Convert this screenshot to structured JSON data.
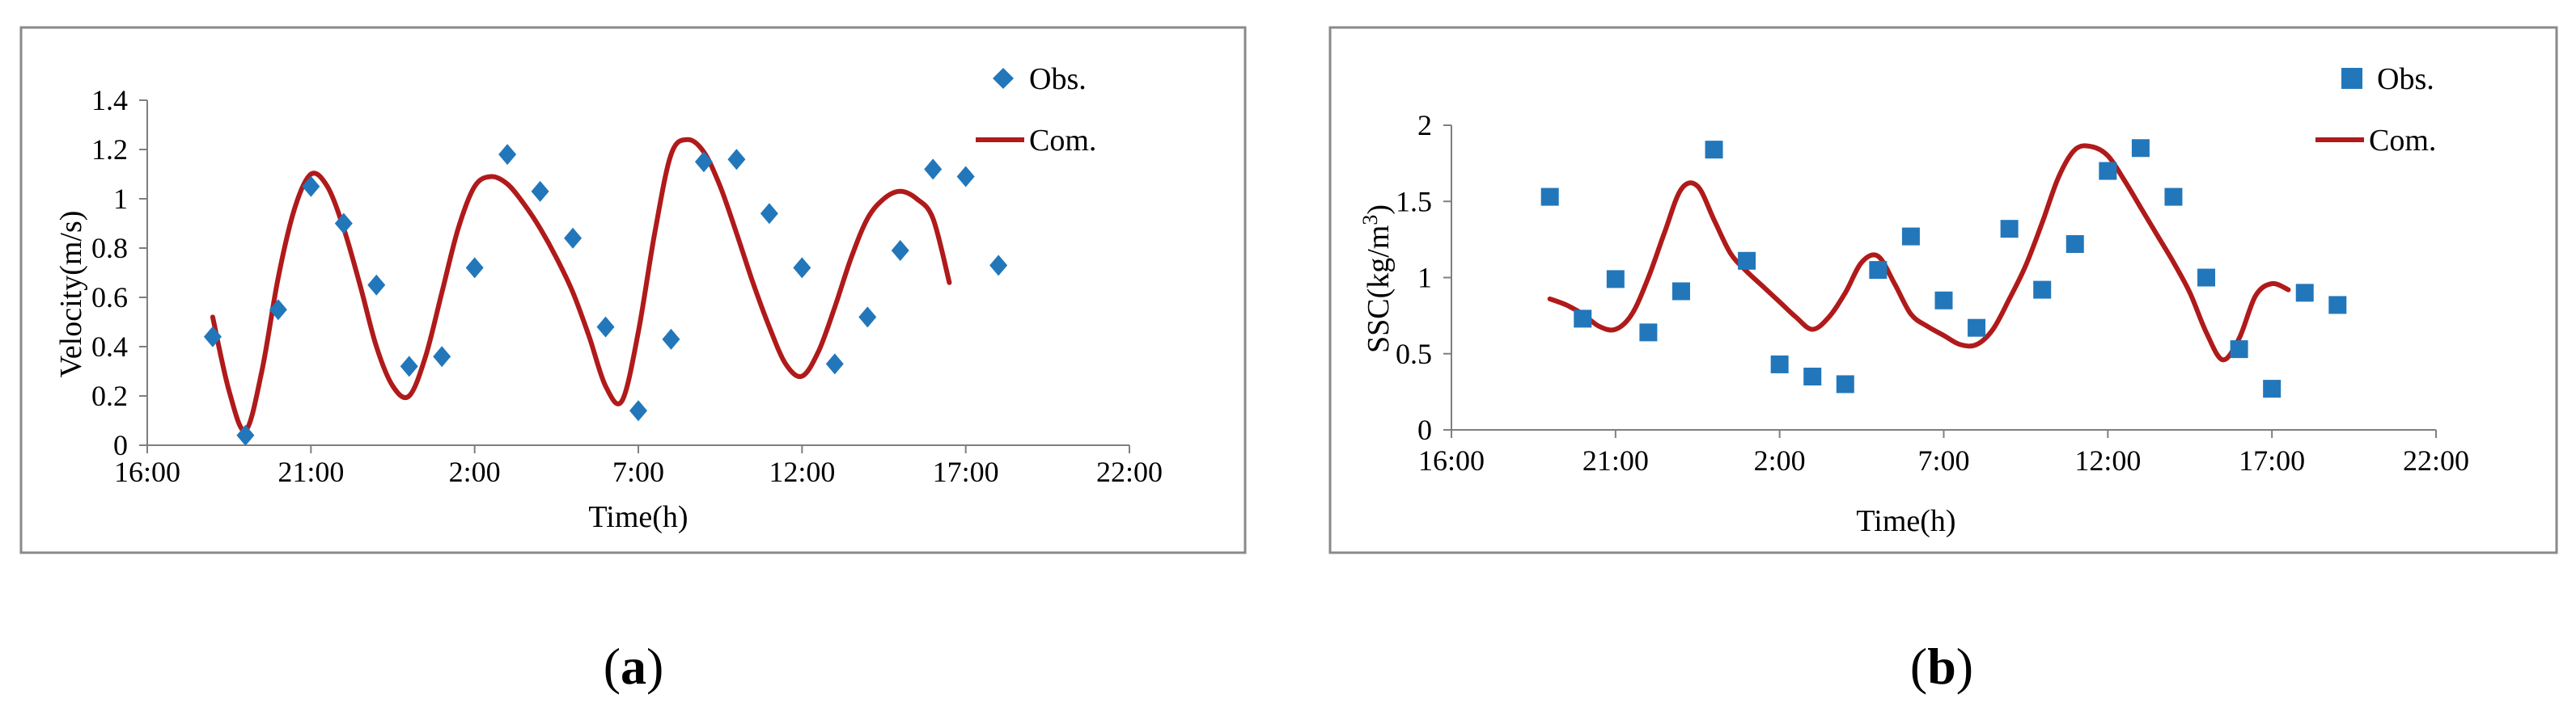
{
  "colors": {
    "obs": "#2277bb",
    "com": "#b01a1a",
    "frame": "#8a8a8a",
    "axis": "#7f7f7f"
  },
  "panels": [
    {
      "caption_open": "(",
      "caption_letter": "a",
      "caption_close": ")"
    },
    {
      "caption_open": "(",
      "caption_letter": "b",
      "caption_close": ")"
    }
  ],
  "chart_data": [
    {
      "type": "scatter+line",
      "title": "",
      "xlabel": "Time(h)",
      "ylabel": "Velocity(m/s)",
      "xlim": [
        0,
        30
      ],
      "ylim": [
        0,
        1.4
      ],
      "x_tick_values": [
        0,
        5,
        10,
        15,
        20,
        25,
        30
      ],
      "x_tick_labels": [
        "16:00",
        "21:00",
        "2:00",
        "7:00",
        "12:00",
        "17:00",
        "22:00"
      ],
      "y_ticks": [
        0,
        0.2,
        0.4,
        0.6,
        0.8,
        1,
        1.2,
        1.4
      ],
      "y_tick_labels": [
        "0",
        "0.2",
        "0.4",
        "0.6",
        "0.8",
        "1",
        "1.2",
        "1.4"
      ],
      "legend": {
        "obs_label": "Obs.",
        "com_label": "Com.",
        "obs_marker": "diamond"
      },
      "series": [
        {
          "name": "Obs.",
          "kind": "markers",
          "x": [
            2,
            3,
            4,
            5,
            6,
            7,
            8,
            9,
            10,
            11,
            12,
            13,
            14,
            15,
            16,
            17,
            18,
            19,
            20,
            21,
            22,
            23,
            24,
            25,
            26,
            27
          ],
          "y": [
            0.44,
            0.04,
            0.55,
            1.05,
            0.9,
            0.65,
            0.32,
            0.36,
            0.72,
            1.18,
            1.03,
            0.84,
            0.48,
            0.14,
            0.43,
            1.15,
            1.16,
            0.94,
            0.72,
            0.33,
            0.52,
            0.79,
            1.12,
            1.09,
            0.73,
            null
          ]
        },
        {
          "name": "Com.",
          "kind": "line",
          "x": [
            2.0,
            2.5,
            3.0,
            3.5,
            4.0,
            4.5,
            5.0,
            5.5,
            6.0,
            6.5,
            7.0,
            7.5,
            8.0,
            8.5,
            9.0,
            9.5,
            10.0,
            10.5,
            11.0,
            11.5,
            12.0,
            12.5,
            13.0,
            13.5,
            14.0,
            14.5,
            15.0,
            15.5,
            16.0,
            16.5,
            17.0,
            17.5,
            18.0,
            18.5,
            19.0,
            19.5,
            20.0,
            20.5,
            21.0,
            21.5,
            22.0,
            22.5,
            23.0,
            23.5,
            24.0,
            24.5,
            25.0,
            25.5,
            26.0
          ],
          "y": [
            0.52,
            0.22,
            0.06,
            0.3,
            0.68,
            0.96,
            1.1,
            1.05,
            0.88,
            0.65,
            0.4,
            0.24,
            0.2,
            0.36,
            0.62,
            0.88,
            1.05,
            1.09,
            1.06,
            0.98,
            0.88,
            0.76,
            0.62,
            0.44,
            0.24,
            0.18,
            0.46,
            0.86,
            1.18,
            1.24,
            1.19,
            1.05,
            0.86,
            0.66,
            0.48,
            0.33,
            0.28,
            0.38,
            0.56,
            0.76,
            0.92,
            1.0,
            1.03,
            1.0,
            0.92,
            0.66,
            null,
            null,
            null
          ]
        }
      ]
    },
    {
      "type": "scatter+line",
      "title": "",
      "xlabel": "Time(h)",
      "ylabel_main": "SSC(kg/m",
      "ylabel_sup": "3",
      "ylabel_close": ")",
      "xlim": [
        0,
        30
      ],
      "ylim": [
        0,
        2
      ],
      "x_tick_values": [
        0,
        5,
        10,
        15,
        20,
        25,
        30
      ],
      "x_tick_labels": [
        "16:00",
        "21:00",
        "2:00",
        "7:00",
        "12:00",
        "17:00",
        "22:00"
      ],
      "y_ticks": [
        0,
        0.5,
        1,
        1.5,
        2
      ],
      "y_tick_labels": [
        "0",
        "0.5",
        "1",
        "1.5",
        "2"
      ],
      "legend": {
        "obs_label": "Obs.",
        "com_label": "Com.",
        "obs_marker": "square"
      },
      "series": [
        {
          "name": "Obs.",
          "kind": "markers",
          "x": [
            3,
            4,
            5,
            6,
            7,
            8,
            9,
            10,
            11,
            12,
            13,
            14,
            15,
            16,
            17,
            18,
            19,
            20,
            21,
            22,
            23,
            24,
            25,
            26,
            27
          ],
          "y": [
            1.53,
            0.73,
            0.99,
            0.64,
            0.91,
            1.84,
            1.11,
            0.43,
            0.35,
            0.3,
            1.05,
            1.27,
            0.85,
            0.67,
            1.32,
            0.92,
            1.22,
            1.7,
            1.85,
            1.53,
            1.0,
            0.53,
            0.27,
            0.9,
            0.82
          ]
        },
        {
          "name": "Com.",
          "kind": "line",
          "x": [
            3.0,
            3.5,
            4.0,
            4.5,
            5.0,
            5.5,
            6.0,
            6.5,
            7.0,
            7.5,
            8.0,
            8.5,
            9.0,
            9.5,
            10.0,
            10.5,
            11.0,
            11.5,
            12.0,
            12.5,
            13.0,
            13.5,
            14.0,
            14.5,
            15.0,
            15.5,
            16.0,
            16.5,
            17.0,
            17.5,
            18.0,
            18.5,
            19.0,
            19.5,
            20.0,
            20.5,
            21.0,
            21.5,
            22.0,
            22.5,
            23.0,
            23.5,
            24.0,
            24.5,
            25.0,
            25.5,
            26.0,
            26.5,
            27.0
          ],
          "y": [
            0.86,
            0.82,
            0.76,
            0.68,
            0.66,
            0.76,
            1.0,
            1.3,
            1.58,
            1.6,
            1.38,
            1.16,
            1.04,
            0.94,
            0.84,
            0.74,
            0.66,
            0.74,
            0.9,
            1.1,
            1.14,
            0.96,
            0.76,
            0.68,
            0.62,
            0.56,
            0.56,
            0.66,
            0.86,
            1.08,
            1.36,
            1.66,
            1.84,
            1.86,
            1.8,
            1.64,
            1.46,
            1.28,
            1.1,
            0.9,
            0.64,
            0.46,
            0.6,
            0.88,
            0.96,
            0.92,
            null,
            null,
            null
          ]
        }
      ]
    }
  ]
}
